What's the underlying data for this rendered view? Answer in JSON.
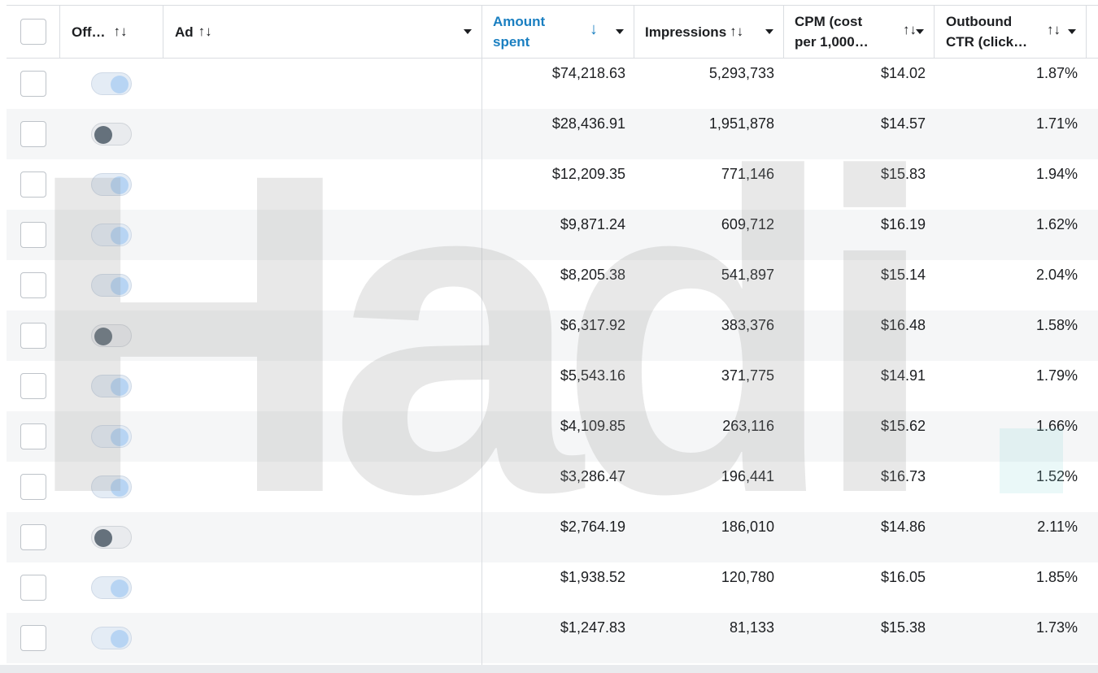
{
  "header": {
    "off_label": "Off…",
    "ad_label": "Ad",
    "amount_label_1": "Amount",
    "amount_label_2": "spent",
    "impressions_label": "Impressions",
    "cpm_label_1": "CPM (cost",
    "cpm_label_2": "per 1,000…",
    "ctr_label_1": "Outbound",
    "ctr_label_2": "CTR (click…",
    "sort_glyph": "↑↓",
    "sorted_desc_glyph": "↓"
  },
  "rows": [
    {
      "toggle": "on",
      "amount": "$74,218.63",
      "impressions": "5,293,733",
      "cpm": "$14.02",
      "ctr": "1.87%"
    },
    {
      "toggle": "off",
      "amount": "$28,436.91",
      "impressions": "1,951,878",
      "cpm": "$14.57",
      "ctr": "1.71%"
    },
    {
      "toggle": "on",
      "amount": "$12,209.35",
      "impressions": "771,146",
      "cpm": "$15.83",
      "ctr": "1.94%"
    },
    {
      "toggle": "on",
      "amount": "$9,871.24",
      "impressions": "609,712",
      "cpm": "$16.19",
      "ctr": "1.62%"
    },
    {
      "toggle": "on",
      "amount": "$8,205.38",
      "impressions": "541,897",
      "cpm": "$15.14",
      "ctr": "2.04%"
    },
    {
      "toggle": "off",
      "amount": "$6,317.92",
      "impressions": "383,376",
      "cpm": "$16.48",
      "ctr": "1.58%"
    },
    {
      "toggle": "on",
      "amount": "$5,543.16",
      "impressions": "371,775",
      "cpm": "$14.91",
      "ctr": "1.79%"
    },
    {
      "toggle": "on",
      "amount": "$4,109.85",
      "impressions": "263,116",
      "cpm": "$15.62",
      "ctr": "1.66%"
    },
    {
      "toggle": "on",
      "amount": "$3,286.47",
      "impressions": "196,441",
      "cpm": "$16.73",
      "ctr": "1.52%"
    },
    {
      "toggle": "off",
      "amount": "$2,764.19",
      "impressions": "186,010",
      "cpm": "$14.86",
      "ctr": "2.11%"
    },
    {
      "toggle": "on",
      "amount": "$1,938.52",
      "impressions": "120,780",
      "cpm": "$16.05",
      "ctr": "1.85%"
    },
    {
      "toggle": "on",
      "amount": "$1,247.83",
      "impressions": "81,133",
      "cpm": "$15.38",
      "ctr": "1.73%"
    }
  ],
  "watermark": "Hadi",
  "colors": {
    "accent": "#1a7fc1",
    "toggle_on_knob": "#b7d4f3",
    "toggle_off_knob": "#65717c"
  }
}
